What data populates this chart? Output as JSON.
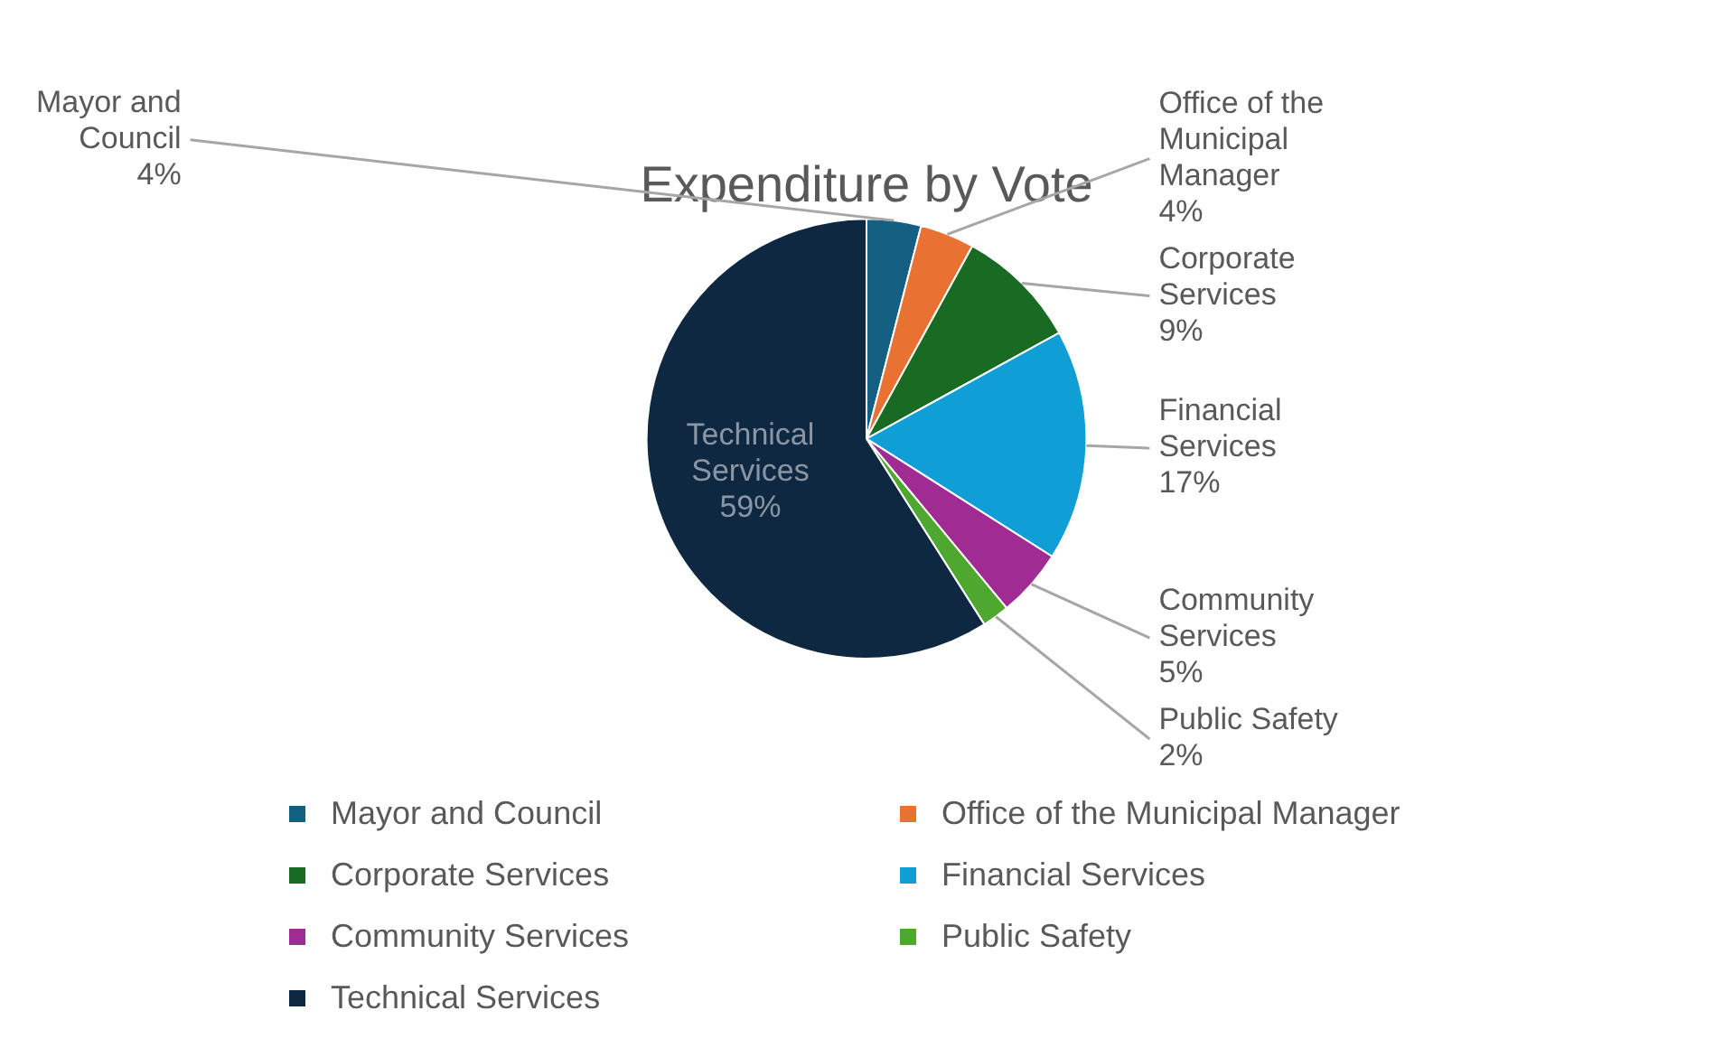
{
  "chart_data": {
    "type": "pie",
    "title": "Expenditure by Vote",
    "categories": [
      "Mayor and Council",
      "Office of the Municipal Manager",
      "Corporate Services",
      "Financial Services",
      "Community Services",
      "Public Safety",
      "Technical Services"
    ],
    "values": [
      4,
      4,
      9,
      17,
      5,
      2,
      59
    ],
    "value_labels": [
      "4%",
      "4%",
      "9%",
      "17%",
      "5%",
      "2%",
      "59%"
    ],
    "colors": [
      "#156082",
      "#e97132",
      "#196b24",
      "#0f9ed5",
      "#a02b93",
      "#4ea72e",
      "#0e2841"
    ],
    "legend": "bottom"
  }
}
